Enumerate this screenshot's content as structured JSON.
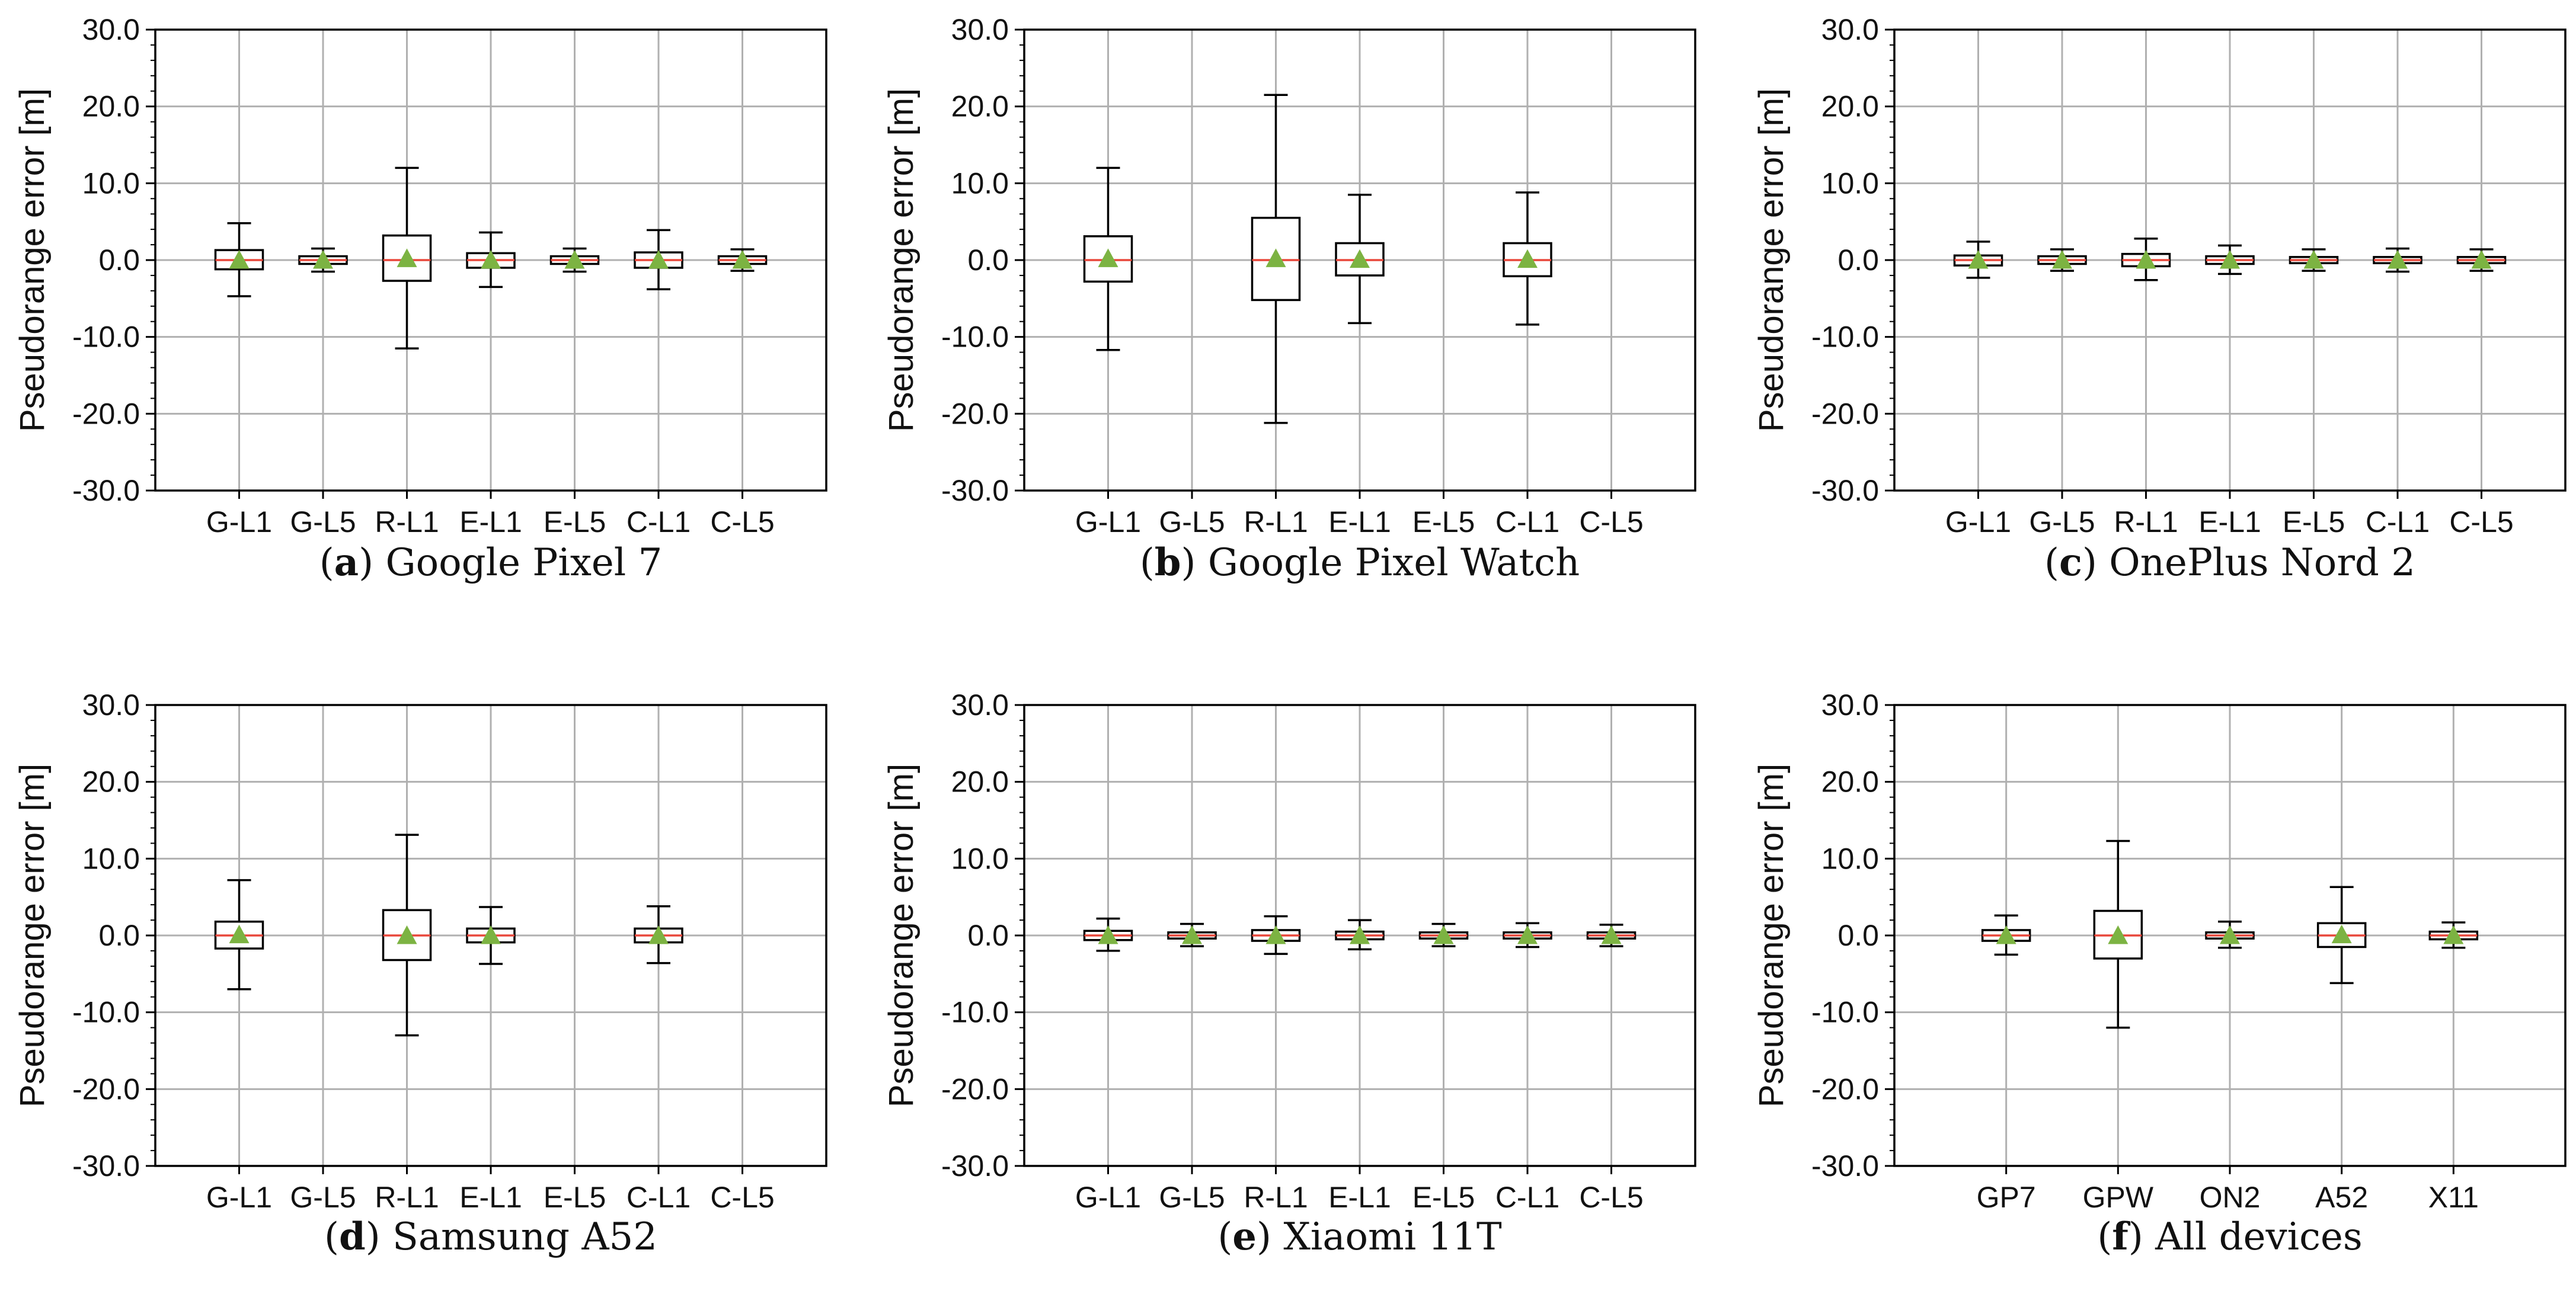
{
  "figure": {
    "colors": {
      "box": "#000000",
      "median": "#e8473a",
      "mean_marker": "#7cb342",
      "grid": "#b0b0b0"
    },
    "chart_data": [
      {
        "id": "a",
        "type": "boxplot",
        "caption_letter": "a",
        "caption_text": " Google Pixel 7",
        "ylabel": "Pseudorange error [m]",
        "ylim": [
          -30,
          30
        ],
        "yticks": [
          "30.0",
          "20.0",
          "10.0",
          "0.0",
          "-10.0",
          "-20.0",
          "-30.0"
        ],
        "ytick_values": [
          30,
          20,
          10,
          0,
          -10,
          -20,
          -30
        ],
        "grid": true,
        "categories": [
          "G-L1",
          "G-L5",
          "R-L1",
          "E-L1",
          "E-L5",
          "C-L1",
          "C-L5"
        ],
        "boxes": [
          {
            "whislo": -4.7,
            "q1": -1.2,
            "med": 0.0,
            "q3": 1.3,
            "whishi": 4.8,
            "mean": 0.0
          },
          {
            "whislo": -1.5,
            "q1": -0.5,
            "med": 0.0,
            "q3": 0.5,
            "whishi": 1.5,
            "mean": 0.0
          },
          {
            "whislo": -11.5,
            "q1": -2.7,
            "med": 0.0,
            "q3": 3.2,
            "whishi": 12.0,
            "mean": 0.2
          },
          {
            "whislo": -3.5,
            "q1": -1.0,
            "med": 0.0,
            "q3": 0.9,
            "whishi": 3.6,
            "mean": 0.0
          },
          {
            "whislo": -1.5,
            "q1": -0.5,
            "med": 0.0,
            "q3": 0.5,
            "whishi": 1.5,
            "mean": 0.0
          },
          {
            "whislo": -3.8,
            "q1": -1.0,
            "med": 0.0,
            "q3": 1.0,
            "whishi": 3.9,
            "mean": 0.0
          },
          {
            "whislo": -1.4,
            "q1": -0.5,
            "med": 0.0,
            "q3": 0.5,
            "whishi": 1.4,
            "mean": 0.0
          }
        ]
      },
      {
        "id": "b",
        "type": "boxplot",
        "caption_letter": "b",
        "caption_text": " Google Pixel Watch",
        "ylabel": "Pseudorange error [m]",
        "ylim": [
          -30,
          30
        ],
        "yticks": [
          "30.0",
          "20.0",
          "10.0",
          "0.0",
          "-10.0",
          "-20.0",
          "-30.0"
        ],
        "ytick_values": [
          30,
          20,
          10,
          0,
          -10,
          -20,
          -30
        ],
        "grid": true,
        "categories": [
          "G-L1",
          "G-L5",
          "R-L1",
          "E-L1",
          "E-L5",
          "C-L1",
          "C-L5"
        ],
        "boxes": [
          {
            "whislo": -11.7,
            "q1": -2.8,
            "med": 0.0,
            "q3": 3.1,
            "whishi": 12.0,
            "mean": 0.2
          },
          null,
          {
            "whislo": -21.2,
            "q1": -5.2,
            "med": 0.0,
            "q3": 5.5,
            "whishi": 21.5,
            "mean": 0.2
          },
          {
            "whislo": -8.2,
            "q1": -2.0,
            "med": 0.0,
            "q3": 2.2,
            "whishi": 8.5,
            "mean": 0.1
          },
          null,
          {
            "whislo": -8.4,
            "q1": -2.1,
            "med": 0.0,
            "q3": 2.2,
            "whishi": 8.8,
            "mean": 0.1
          },
          null
        ]
      },
      {
        "id": "c",
        "type": "boxplot",
        "caption_letter": "c",
        "caption_text": " OnePlus Nord 2",
        "ylabel": "Pseudorange error [m]",
        "ylim": [
          -30,
          30
        ],
        "yticks": [
          "30.0",
          "20.0",
          "10.0",
          "0.0",
          "-10.0",
          "-20.0",
          "-30.0"
        ],
        "ytick_values": [
          30,
          20,
          10,
          0,
          -10,
          -20,
          -30
        ],
        "grid": true,
        "categories": [
          "G-L1",
          "G-L5",
          "R-L1",
          "E-L1",
          "E-L5",
          "C-L1",
          "C-L5"
        ],
        "boxes": [
          {
            "whislo": -2.3,
            "q1": -0.7,
            "med": 0.0,
            "q3": 0.6,
            "whishi": 2.4,
            "mean": 0.0
          },
          {
            "whislo": -1.4,
            "q1": -0.5,
            "med": 0.0,
            "q3": 0.5,
            "whishi": 1.4,
            "mean": 0.0
          },
          {
            "whislo": -2.6,
            "q1": -0.8,
            "med": 0.0,
            "q3": 0.8,
            "whishi": 2.8,
            "mean": 0.0
          },
          {
            "whislo": -1.8,
            "q1": -0.5,
            "med": 0.0,
            "q3": 0.5,
            "whishi": 1.9,
            "mean": 0.0
          },
          {
            "whislo": -1.4,
            "q1": -0.4,
            "med": 0.0,
            "q3": 0.4,
            "whishi": 1.4,
            "mean": 0.0
          },
          {
            "whislo": -1.5,
            "q1": -0.4,
            "med": 0.0,
            "q3": 0.4,
            "whishi": 1.5,
            "mean": 0.0
          },
          {
            "whislo": -1.4,
            "q1": -0.4,
            "med": 0.0,
            "q3": 0.4,
            "whishi": 1.4,
            "mean": 0.0
          }
        ]
      },
      {
        "id": "d",
        "type": "boxplot",
        "caption_letter": "d",
        "caption_text": " Samsung A52",
        "ylabel": "Pseudorange error [m]",
        "ylim": [
          -30,
          30
        ],
        "yticks": [
          "30.0",
          "20.0",
          "10.0",
          "0.0",
          "-10.0",
          "-20.0",
          "-30.0"
        ],
        "ytick_values": [
          30,
          20,
          10,
          0,
          -10,
          -20,
          -30
        ],
        "grid": true,
        "categories": [
          "G-L1",
          "G-L5",
          "R-L1",
          "E-L1",
          "E-L5",
          "C-L1",
          "C-L5"
        ],
        "boxes": [
          {
            "whislo": -7.0,
            "q1": -1.7,
            "med": 0.0,
            "q3": 1.8,
            "whishi": 7.2,
            "mean": 0.1
          },
          null,
          {
            "whislo": -13.0,
            "q1": -3.2,
            "med": 0.0,
            "q3": 3.3,
            "whishi": 13.1,
            "mean": 0.0
          },
          {
            "whislo": -3.7,
            "q1": -0.9,
            "med": 0.0,
            "q3": 0.9,
            "whishi": 3.7,
            "mean": 0.0
          },
          null,
          {
            "whislo": -3.6,
            "q1": -0.9,
            "med": 0.0,
            "q3": 0.9,
            "whishi": 3.8,
            "mean": 0.0
          },
          null
        ]
      },
      {
        "id": "e",
        "type": "boxplot",
        "caption_letter": "e",
        "caption_text": " Xiaomi 11T",
        "ylabel": "Pseudorange error [m]",
        "ylim": [
          -30,
          30
        ],
        "yticks": [
          "30.0",
          "20.0",
          "10.0",
          "0.0",
          "-10.0",
          "-20.0",
          "-30.0"
        ],
        "ytick_values": [
          30,
          20,
          10,
          0,
          -10,
          -20,
          -30
        ],
        "grid": true,
        "categories": [
          "G-L1",
          "G-L5",
          "R-L1",
          "E-L1",
          "E-L5",
          "C-L1",
          "C-L5"
        ],
        "boxes": [
          {
            "whislo": -2.0,
            "q1": -0.6,
            "med": 0.0,
            "q3": 0.6,
            "whishi": 2.2,
            "mean": 0.0
          },
          {
            "whislo": -1.4,
            "q1": -0.4,
            "med": 0.0,
            "q3": 0.4,
            "whishi": 1.5,
            "mean": 0.0
          },
          {
            "whislo": -2.4,
            "q1": -0.7,
            "med": 0.0,
            "q3": 0.7,
            "whishi": 2.5,
            "mean": 0.0
          },
          {
            "whislo": -1.8,
            "q1": -0.5,
            "med": 0.0,
            "q3": 0.5,
            "whishi": 2.0,
            "mean": 0.0
          },
          {
            "whislo": -1.4,
            "q1": -0.4,
            "med": 0.0,
            "q3": 0.4,
            "whishi": 1.5,
            "mean": 0.0
          },
          {
            "whislo": -1.5,
            "q1": -0.4,
            "med": 0.0,
            "q3": 0.4,
            "whishi": 1.6,
            "mean": 0.0
          },
          {
            "whislo": -1.4,
            "q1": -0.4,
            "med": 0.0,
            "q3": 0.4,
            "whishi": 1.4,
            "mean": 0.0
          }
        ]
      },
      {
        "id": "f",
        "type": "boxplot",
        "caption_letter": "f",
        "caption_text": " All devices",
        "ylabel": "Pseudorange error [m]",
        "ylim": [
          -30,
          30
        ],
        "yticks": [
          "30.0",
          "20.0",
          "10.0",
          "0.0",
          "-10.0",
          "-20.0",
          "-30.0"
        ],
        "ytick_values": [
          30,
          20,
          10,
          0,
          -10,
          -20,
          -30
        ],
        "grid": true,
        "categories": [
          "GP7",
          "GPW",
          "ON2",
          "A52",
          "X11"
        ],
        "boxes": [
          {
            "whislo": -2.5,
            "q1": -0.7,
            "med": 0.0,
            "q3": 0.7,
            "whishi": 2.6,
            "mean": 0.0
          },
          {
            "whislo": -12.0,
            "q1": -3.0,
            "med": 0.0,
            "q3": 3.2,
            "whishi": 12.3,
            "mean": 0.0
          },
          {
            "whislo": -1.6,
            "q1": -0.4,
            "med": 0.0,
            "q3": 0.4,
            "whishi": 1.8,
            "mean": 0.0
          },
          {
            "whislo": -6.2,
            "q1": -1.5,
            "med": 0.0,
            "q3": 1.6,
            "whishi": 6.3,
            "mean": 0.1
          },
          {
            "whislo": -1.6,
            "q1": -0.5,
            "med": 0.0,
            "q3": 0.5,
            "whishi": 1.7,
            "mean": 0.0
          }
        ]
      }
    ]
  }
}
